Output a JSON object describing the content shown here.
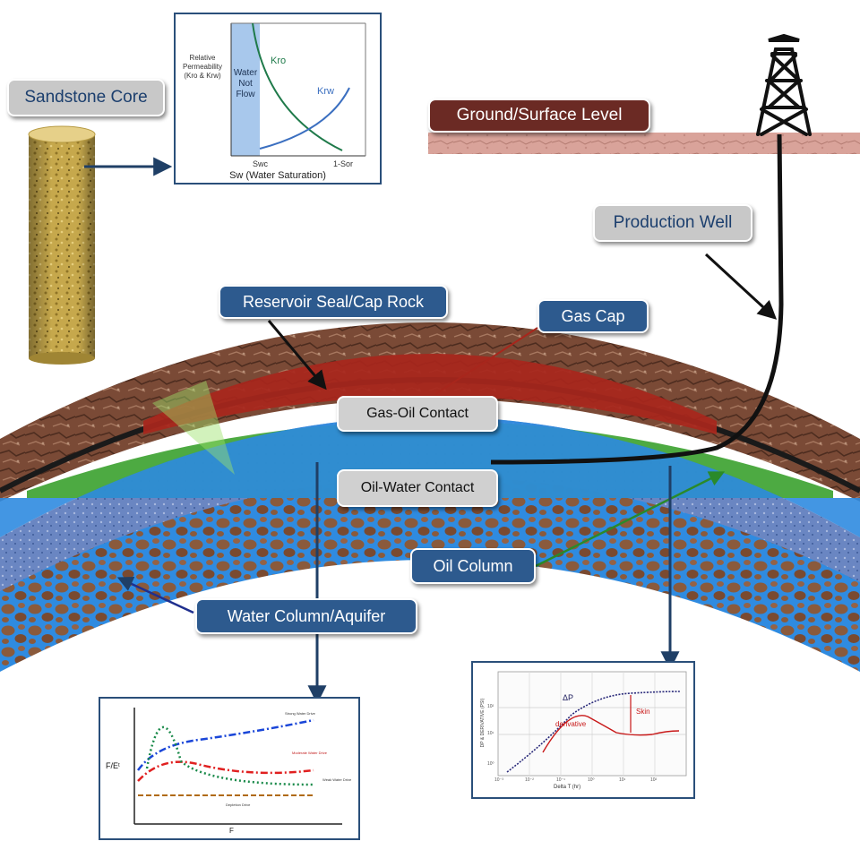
{
  "labels": {
    "sandstone_core": "Sandstone Core",
    "ground_surface": "Ground/Surface Level",
    "production_well": "Production Well",
    "reservoir_seal": "Reservoir Seal/Cap Rock",
    "gas_cap": "Gas Cap",
    "gas_oil_contact": "Gas-Oil Contact",
    "oil_water_contact": "Oil-Water Contact",
    "oil_column": "Oil Column",
    "water_column": "Water Column/Aquifer"
  },
  "relperm_chart": {
    "ylabel": "Relative Permeability (Kro & Krw)",
    "no_flow_zone": "Water Not Flow",
    "curve_kro": "Kro",
    "curve_krw": "Krw",
    "tick_swc": "Swc",
    "tick_1sor": "1-Sor",
    "xlabel": "Sw (Water Saturation)"
  },
  "drive_chart": {
    "ylabel": "F/Eᵗ",
    "xlabel": "F",
    "series": [
      "Strong Water Drive",
      "Moderate Water Drive",
      "Weak Water Drive",
      "Depletion Drive"
    ]
  },
  "welltest_chart": {
    "ylabel": "DP & DERIVATIVE (PSI)",
    "xlabel": "Delta T (hr)",
    "curve_dp": "ΔP",
    "curve_derivative": "derivative",
    "skin_label": "Skin",
    "x_ticks": [
      "10⁻³",
      "10⁻²",
      "10⁻¹",
      "10⁰",
      "10¹",
      "10²"
    ],
    "y_ticks": [
      "10²",
      "10¹",
      "10⁰"
    ]
  },
  "colors": {
    "label_blue": "#2d5a8e",
    "label_grey": "#c8c8c8",
    "ground_label": "#6b2a24",
    "rock_brown": "#7a4a36",
    "gas_red": "#a8261c",
    "oil_green": "#3aa12e",
    "water_blue": "#2f8be0"
  }
}
